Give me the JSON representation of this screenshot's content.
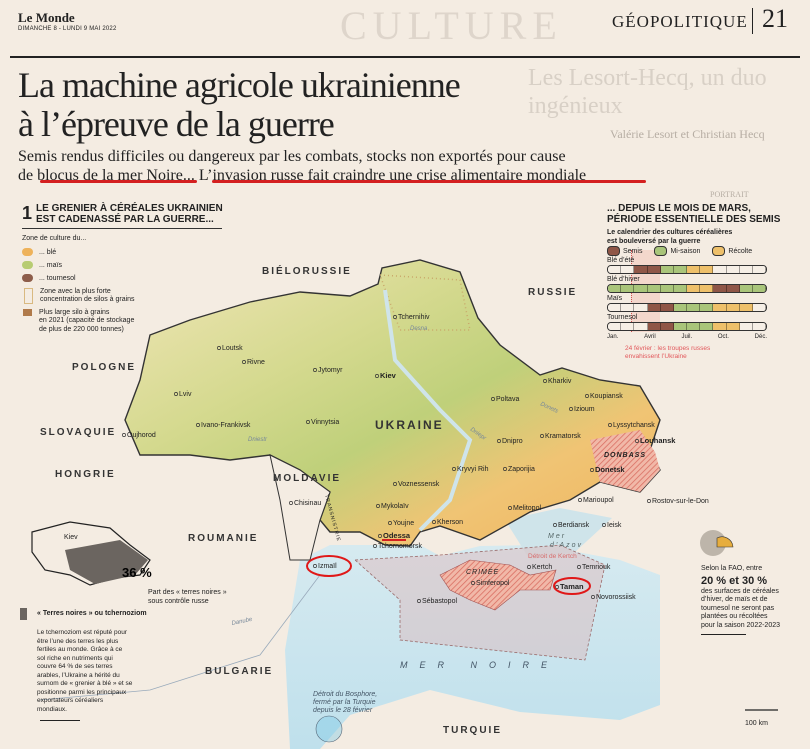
{
  "header": {
    "logo": "Le Monde",
    "date": "DIMANCHE 8 - LUNDI 9 MAI 2022",
    "section": "GÉOPOLITIQUE",
    "page_number": "21",
    "ghost_section": "CULTURE",
    "ghost_headline": "Les Lesort-Hecq, un duo ingénieux",
    "ghost_byline": "Valérie Lesort et Christian Hecq",
    "ghost_kicker": "PORTRAIT"
  },
  "article": {
    "title_line1": "La machine agricole ukrainienne",
    "title_line2": "à l’épreuve de la guerre",
    "subtitle_line1": "Semis rendus difficiles ou dangereux par les combats, stocks non exportés pour cause",
    "subtitle_line2_a": "de ",
    "subtitle_line2_b": "blocus de la mer Noire",
    "subtitle_line2_c": "... ",
    "subtitle_line2_d": "L’invasion russe fait craindre une crise alimentaire mondiale",
    "highlight_color": "#d42020"
  },
  "legend": {
    "number": "1",
    "heading_line1": "LE GRENIER À CÉRÉALES UKRAINIEN",
    "heading_line2": "EST CADENASSÉ PAR LA GUERRE...",
    "intro": "Zone de culture du...",
    "items": [
      {
        "label": "... blé",
        "color": "#eeb25a"
      },
      {
        "label": "... maïs",
        "color": "#b8cc72"
      },
      {
        "label": "... tournesol",
        "color": "#8d5d4a"
      }
    ],
    "silo_zone_line1": "Zone avec la plus forte",
    "silo_zone_line2": "concentration de silos à grains",
    "silo_line1": "Plus large silo à grains",
    "silo_line2": "en 2021 (capacité de stockage",
    "silo_line3": "de plus de 220 000 tonnes)"
  },
  "inset": {
    "city": "Kiev",
    "percent": "36 %",
    "caption_line1": "Part des « terres noires »",
    "caption_line2": "sous contrôle russe",
    "color": "#6b6560"
  },
  "chernozem": {
    "title": "« Terres noires » ou tchernoziom",
    "lines": [
      "Le tchernoziom est réputé pour",
      "être l’une des terres les plus",
      "fertiles au monde. Grâce à ce",
      "sol riche en nutriments qui",
      "couvre 64 % de ses terres",
      "arables, l’Ukraine a hérité du",
      "surnom de « grenier à blé » et se",
      "positionne parmi les principaux",
      "exportateurs céréaliers",
      "mondiaux."
    ]
  },
  "calendar": {
    "heading_line1": "... DEPUIS LE MOIS DE MARS,",
    "heading_line2": "PÉRIODE ESSENTIELLE DES SEMIS",
    "intro_line1": "Le calendrier des cultures céréalières",
    "intro_line2": "est bouleversé par la guerre",
    "phases": [
      {
        "key": "S",
        "label": "Semis",
        "color": "#8f5647"
      },
      {
        "key": "M",
        "label": "Mi-saison",
        "color": "#a9c57a"
      },
      {
        "key": "R",
        "label": "Récolte",
        "color": "#eec06a"
      }
    ],
    "crops": [
      {
        "name": "Blé d’été",
        "months": [
          "-",
          "-",
          "S",
          "S",
          "M",
          "M",
          "R",
          "R",
          "-",
          "-",
          "-",
          "-"
        ]
      },
      {
        "name": "Blé d’hiver",
        "months": [
          "M",
          "M",
          "M",
          "M",
          "M",
          "M",
          "R",
          "R",
          "S",
          "S",
          "M",
          "M"
        ]
      },
      {
        "name": "Maïs",
        "months": [
          "-",
          "-",
          "-",
          "S",
          "S",
          "M",
          "M",
          "M",
          "R",
          "R",
          "R",
          "-"
        ]
      },
      {
        "name": "Tournesol",
        "months": [
          "-",
          "-",
          "-",
          "S",
          "S",
          "M",
          "M",
          "M",
          "R",
          "R",
          "-",
          "-"
        ]
      }
    ],
    "month_labels": [
      "Jan.",
      "Avril",
      "Juil.",
      "Oct.",
      "Déc."
    ],
    "war_note_line1": "24 février : les troupes russes",
    "war_note_line2": "envahissent l’Ukraine",
    "war_color": "#e2575b"
  },
  "fao": {
    "line1": "Selon la FAO, entre",
    "big": "20 % et 30 %",
    "lines": [
      "des surfaces de céréales",
      "d’hiver, de maïs et de",
      "tournesol ne seront pas",
      "plantées ou récoltées",
      "pour la saison 2022-2023"
    ]
  },
  "map": {
    "countries": {
      "belarus": "BIÉLORUSSIE",
      "russia": "RUSSIE",
      "poland": "POLOGNE",
      "slovakia": "SLOVAQUIE",
      "hungary": "HONGRIE",
      "moldova": "MOLDAVIE",
      "romania": "ROUMANIE",
      "bulgaria": "BULGARIE",
      "turkey": "TURQUIE",
      "ukraine": "UKRAINE",
      "transnistria": "TRANSNISTRIE",
      "crimea": "CRIMÉE",
      "donbass": "DONBASS"
    },
    "seas": {
      "black_sea": "MER NOIRE",
      "azov_1": "Mer",
      "azov_2": "d’Azov"
    },
    "rivers": {
      "dniester": "Dniestr",
      "dnieper": "Dniepr",
      "desna": "Desna",
      "donets": "Donets",
      "danube": "Danube"
    },
    "cities": {
      "kiev": "Kiev",
      "loutsk": "Loutsk",
      "rivne": "Rivne",
      "lviv": "Lviv",
      "jytomyr": "Jytomyr",
      "ivano": "Ivano-Frankivsk",
      "vinnytsia": "Vinnytsia",
      "oujhorod": "Oujhorod",
      "tchernihiv": "Tchernihiv",
      "kharkiv": "Kharkiv",
      "poltava": "Poltava",
      "koupiansk": "Koupiansk",
      "izioum": "Izioum",
      "lyssytchansk": "Lyssytchansk",
      "louhansk": "Louhansk",
      "kramatorsk": "Kramatorsk",
      "dnipro": "Dnipro",
      "donetsk": "Donetsk",
      "kryvyi": "Kryvyi Rih",
      "zaporijia": "Zaporijia",
      "voznessensk": "Voznessensk",
      "mykolaiv": "Mykolaïv",
      "marioupol": "Marioupol",
      "melitopol": "Melitopol",
      "kherson": "Kherson",
      "rostov": "Rostov-sur-le-Don",
      "chisinau": "Chisinau",
      "youjne": "Youjne",
      "odessa": "Odessa",
      "tchornomorsk": "Tchornomorsk",
      "izmail": "Izmaïl",
      "berdiansk": "Berdiansk",
      "ieisk": "Ieisk",
      "kertch": "Kertch",
      "temriouk": "Temriouk",
      "taman": "Taman",
      "novorossiisk": "Novorossiisk",
      "simferopol": "Simferopol",
      "sebastopol": "Sébastopol"
    },
    "kerch_strait": "Détroit de Kertch",
    "bosphorus_line1": "Détroit du Bosphore,",
    "bosphorus_line2": "fermé par la Turquie",
    "bosphorus_line3": "depuis le 28 février",
    "scale": "100 km"
  }
}
